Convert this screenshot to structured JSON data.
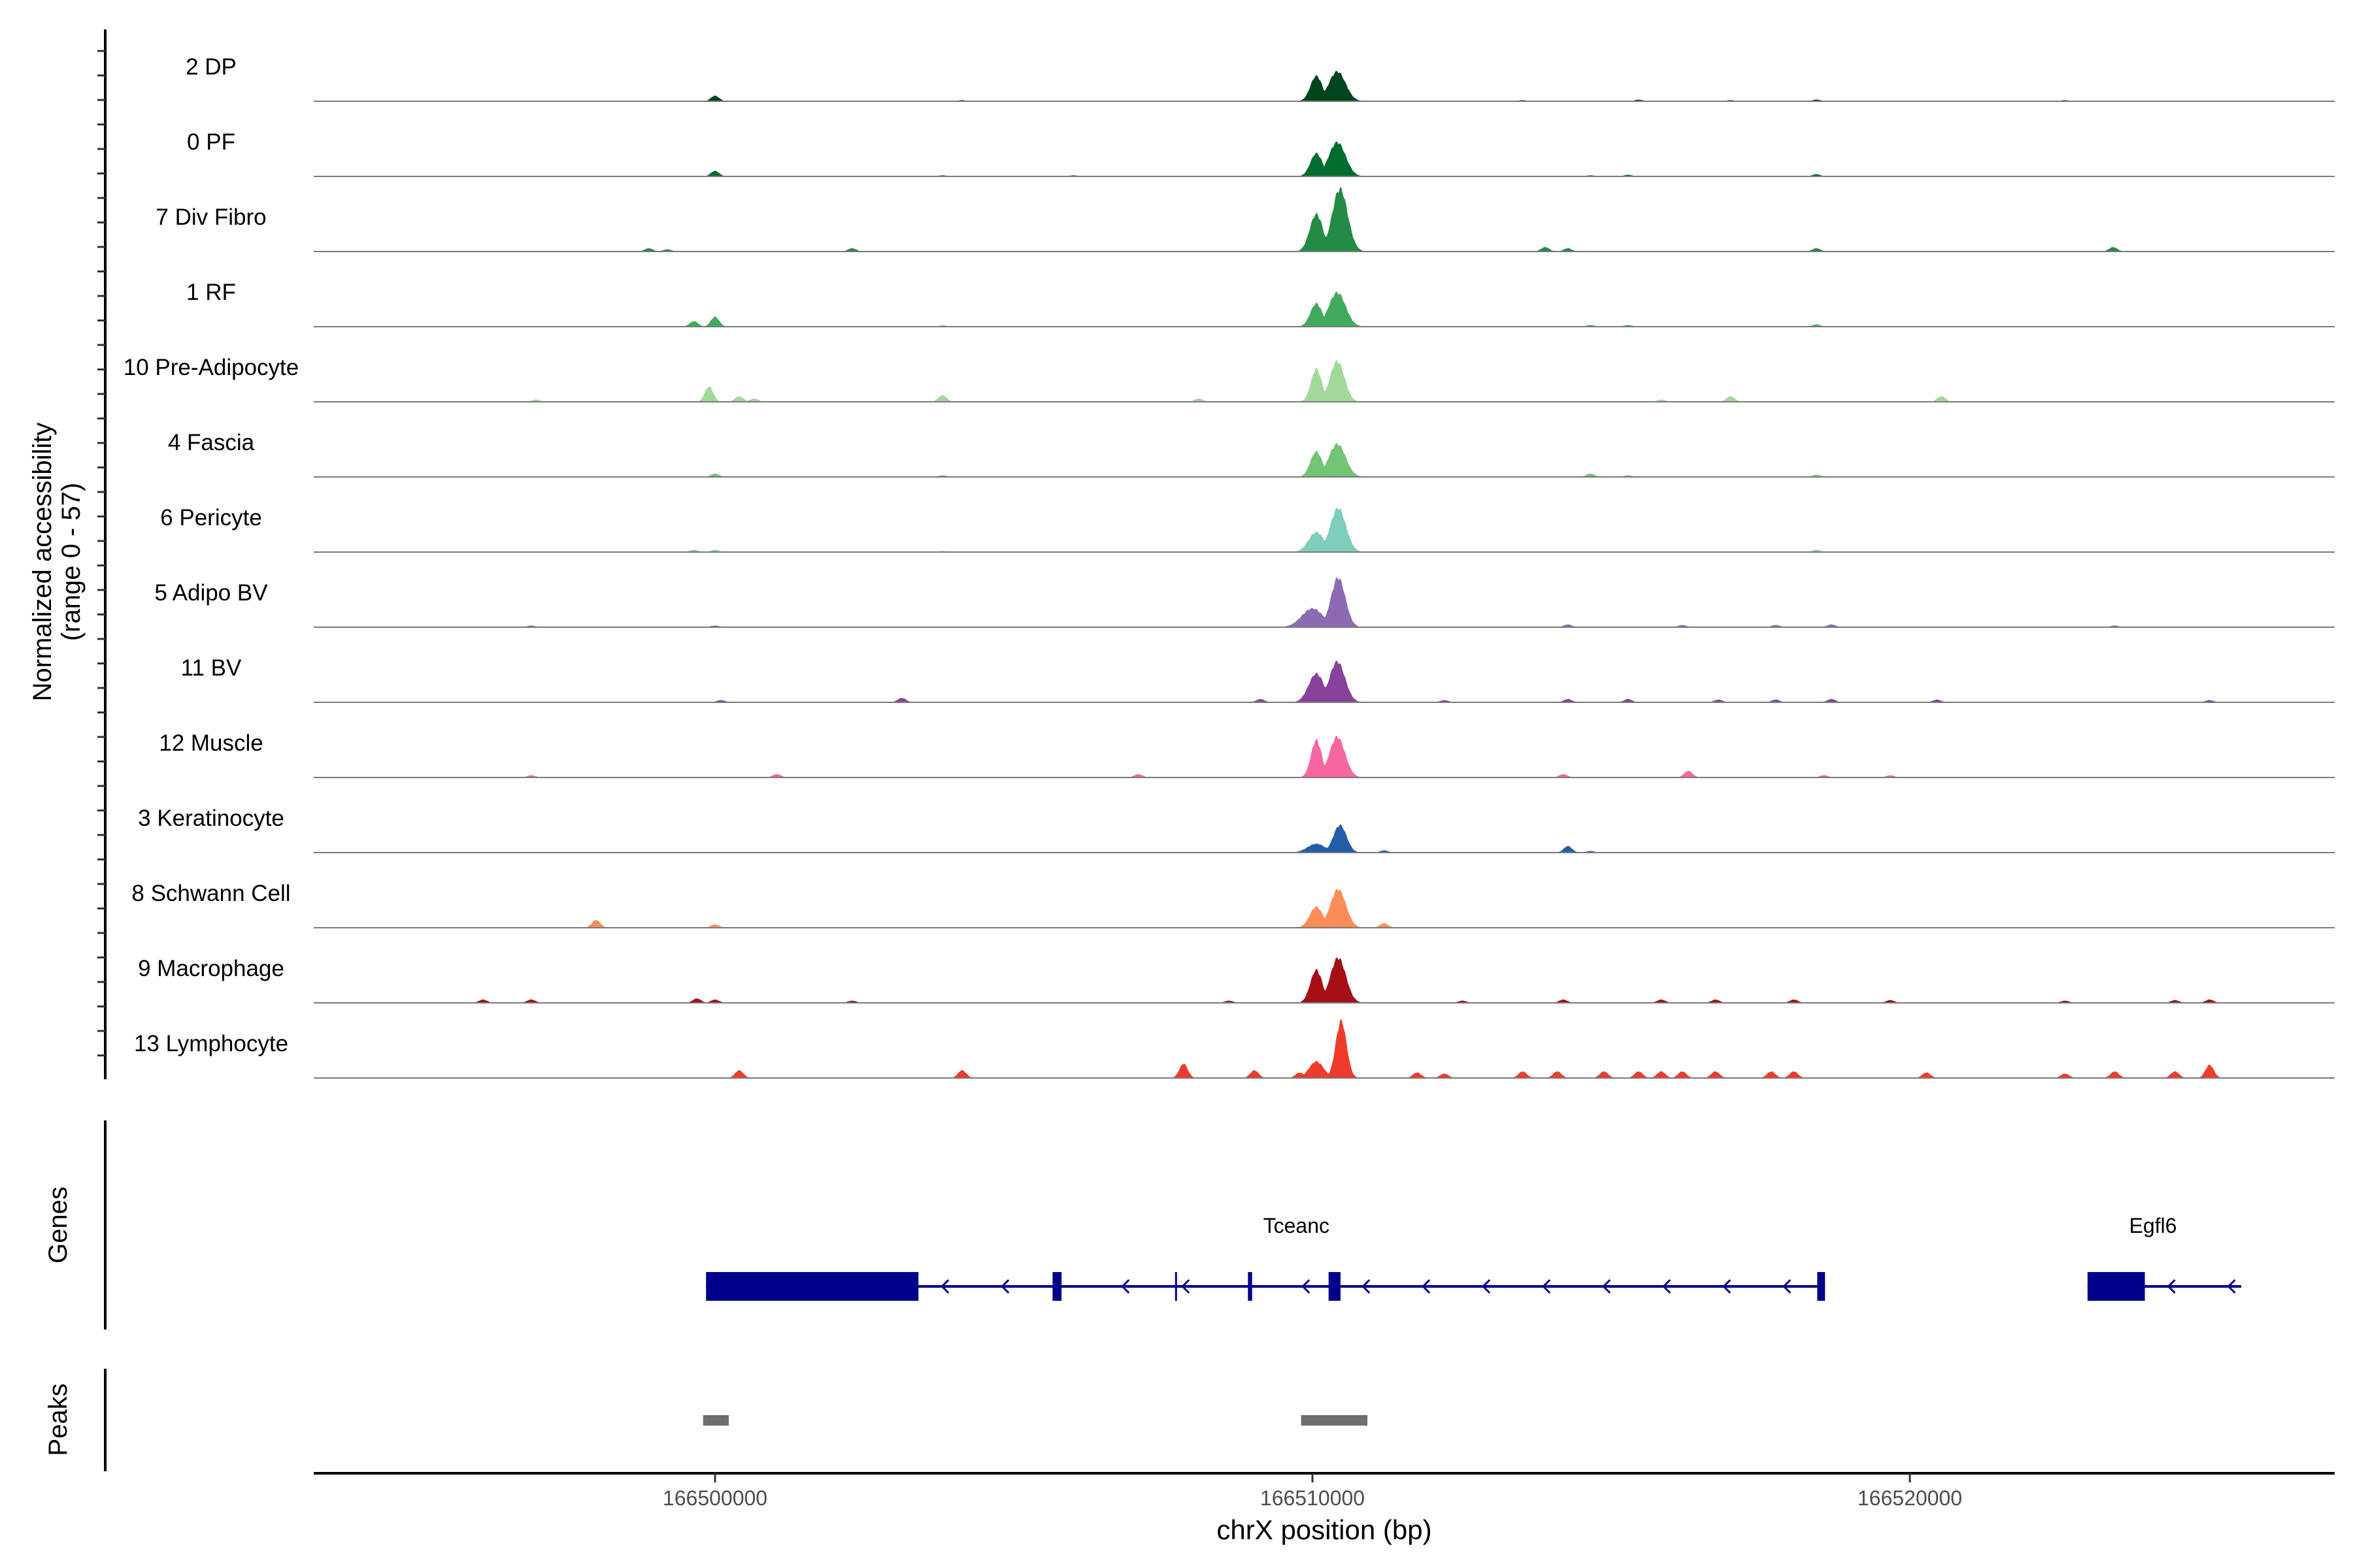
{
  "chart_data": {
    "type": "area",
    "ylabel_line1": "Normalized accessibility",
    "ylabel_line2": "(range 0 - 57)",
    "xlabel": "chrX position (bp)",
    "xlim": [
      166493282,
      166527112
    ],
    "ylim": [
      0,
      57
    ],
    "x_ticks": [
      {
        "value": 166500000,
        "label": "166500000"
      },
      {
        "value": 166510000,
        "label": "166510000"
      },
      {
        "value": 166520000,
        "label": "166520000"
      }
    ],
    "tracks": [
      {
        "name": "2 DP",
        "color": "#00441b",
        "lobes": [
          [
            166510066,
            23,
            100
          ],
          [
            166510415,
            27,
            140
          ]
        ],
        "minor": [
          [
            166500000,
            5
          ],
          [
            166504136,
            1
          ],
          [
            166513518,
            1
          ],
          [
            166515460,
            1.5
          ],
          [
            166516998,
            1
          ],
          [
            166518436,
            1.5
          ],
          [
            166522597,
            1
          ]
        ]
      },
      {
        "name": "0 PF",
        "color": "#006d2c",
        "lobes": [
          [
            166510066,
            21,
            100
          ],
          [
            166510415,
            31,
            140
          ]
        ],
        "minor": [
          [
            166500000,
            5
          ],
          [
            166503808,
            1
          ],
          [
            166506000,
            1
          ],
          [
            166514653,
            1
          ],
          [
            166515283,
            1.5
          ],
          [
            166518436,
            2
          ]
        ]
      },
      {
        "name": "7 Div Fibro",
        "color": "#238b45",
        "lobes": [
          [
            166510066,
            34,
            110
          ],
          [
            166510460,
            57,
            130
          ]
        ],
        "minor": [
          [
            166498890,
            3
          ],
          [
            166499200,
            2
          ],
          [
            166502295,
            3
          ],
          [
            166513896,
            4
          ],
          [
            166514275,
            3
          ],
          [
            166518436,
            3
          ],
          [
            166523404,
            4
          ]
        ]
      },
      {
        "name": "1 RF",
        "color": "#41ab5d",
        "lobes": [
          [
            166510066,
            21,
            100
          ],
          [
            166510415,
            31,
            140
          ]
        ],
        "minor": [
          [
            166499647,
            5
          ],
          [
            166500000,
            9
          ],
          [
            166503808,
            1
          ],
          [
            166514653,
            1.5
          ],
          [
            166515283,
            1.5
          ],
          [
            166518436,
            2
          ]
        ]
      },
      {
        "name": "10 Pre-Adipocyte",
        "color": "#a1d99b",
        "lobes": [
          [
            166510066,
            30,
            90
          ],
          [
            166510415,
            37,
            120
          ]
        ],
        "minor": [
          [
            166497000,
            2
          ],
          [
            166499899,
            14
          ],
          [
            166500404,
            5
          ],
          [
            166500656,
            3
          ],
          [
            166503808,
            6
          ],
          [
            166508096,
            3
          ],
          [
            166516998,
            5
          ],
          [
            166520529,
            5
          ],
          [
            166515838,
            2
          ]
        ]
      },
      {
        "name": "4 Fascia",
        "color": "#74c476",
        "lobes": [
          [
            166510066,
            23,
            100
          ],
          [
            166510415,
            30,
            140
          ]
        ],
        "minor": [
          [
            166500000,
            3
          ],
          [
            166503808,
            1.5
          ],
          [
            166514653,
            3
          ],
          [
            166515283,
            1.5
          ],
          [
            166518436,
            2
          ]
        ]
      },
      {
        "name": "6 Pericyte",
        "color": "#7fcdbb",
        "lobes": [
          [
            166510066,
            18,
            130
          ],
          [
            166510430,
            40,
            130
          ]
        ],
        "minor": [
          [
            166499647,
            2
          ],
          [
            166500000,
            2
          ],
          [
            166503808,
            1
          ],
          [
            166518436,
            2
          ]
        ]
      },
      {
        "name": "5 Adipo BV",
        "color": "#8c6bb1",
        "lobes": [
          [
            166510000,
            17,
            180
          ],
          [
            166510430,
            45,
            120
          ]
        ],
        "minor": [
          [
            166496923,
            1.5
          ],
          [
            166500000,
            1.5
          ],
          [
            166514275,
            2.5
          ],
          [
            166516191,
            2
          ],
          [
            166517755,
            2
          ],
          [
            166518688,
            2.5
          ],
          [
            166523429,
            1.5
          ]
        ]
      },
      {
        "name": "11 BV",
        "color": "#88419d",
        "lobes": [
          [
            166510066,
            26,
            130
          ],
          [
            166510415,
            37,
            130
          ]
        ],
        "minor": [
          [
            166500101,
            2
          ],
          [
            166503127,
            4
          ],
          [
            166509130,
            3
          ],
          [
            166512206,
            2
          ],
          [
            166514275,
            3
          ],
          [
            166515283,
            3
          ],
          [
            166516797,
            2.5
          ],
          [
            166517755,
            2.5
          ],
          [
            166518688,
            3
          ],
          [
            166520453,
            2.5
          ],
          [
            166525018,
            2
          ]
        ]
      },
      {
        "name": "12 Muscle",
        "color": "#f768a1",
        "lobes": [
          [
            166510066,
            34,
            90
          ],
          [
            166510415,
            37,
            130
          ]
        ],
        "minor": [
          [
            166496923,
            2
          ],
          [
            166501034,
            3
          ],
          [
            166507087,
            3
          ],
          [
            166514199,
            3
          ],
          [
            166516292,
            6
          ],
          [
            166518562,
            2
          ],
          [
            166519672,
            2
          ]
        ]
      },
      {
        "name": "3 Keratinocyte",
        "color": "#225ea8",
        "lobes": [
          [
            166510066,
            8,
            150
          ],
          [
            166510460,
            25,
            110
          ]
        ],
        "minor": [
          [
            166511197,
            2
          ],
          [
            166514275,
            6
          ],
          [
            166514653,
            1.5
          ]
        ]
      },
      {
        "name": "8 Schwann Cell",
        "color": "#fc8d59",
        "lobes": [
          [
            166510066,
            19,
            110
          ],
          [
            166510430,
            35,
            130
          ]
        ],
        "minor": [
          [
            166498008,
            7
          ],
          [
            166500000,
            3
          ],
          [
            166511197,
            4
          ]
        ]
      },
      {
        "name": "9 Macrophage",
        "color": "#a50f15",
        "lobes": [
          [
            166510066,
            30,
            100
          ],
          [
            166510430,
            41,
            130
          ]
        ],
        "minor": [
          [
            166496116,
            3
          ],
          [
            166496923,
            3
          ],
          [
            166499697,
            4
          ],
          [
            166500000,
            3
          ],
          [
            166502295,
            2
          ],
          [
            166508600,
            2
          ],
          [
            166512509,
            2
          ],
          [
            166514199,
            3
          ],
          [
            166515838,
            3
          ],
          [
            166516746,
            3
          ],
          [
            166518058,
            3
          ],
          [
            166519672,
            2.5
          ],
          [
            166522597,
            2
          ],
          [
            166524438,
            2.5
          ],
          [
            166525018,
            3
          ]
        ]
      },
      {
        "name": "13 Lymphocyte",
        "color": "#ef3b2c",
        "lobes": [
          [
            166510066,
            15,
            120
          ],
          [
            166510480,
            52,
            90
          ]
        ],
        "minor": [
          [
            166500404,
            7
          ],
          [
            166504136,
            7
          ],
          [
            166507843,
            13
          ],
          [
            166509029,
            7
          ],
          [
            166509785,
            5
          ],
          [
            166511752,
            5
          ],
          [
            166512206,
            4
          ],
          [
            166513518,
            6
          ],
          [
            166514098,
            6
          ],
          [
            166514880,
            6
          ],
          [
            166515460,
            6
          ],
          [
            166515838,
            6
          ],
          [
            166516191,
            6
          ],
          [
            166516746,
            6
          ],
          [
            166517679,
            6
          ],
          [
            166518058,
            6
          ],
          [
            166520277,
            5
          ],
          [
            166522597,
            4
          ],
          [
            166523429,
            6
          ],
          [
            166524438,
            6
          ],
          [
            166525018,
            12
          ]
        ]
      }
    ],
    "genes_label": "Genes",
    "genes": [
      {
        "name": "Tceanc",
        "label_pos": 166509730,
        "start": 166499849,
        "end": 166518580,
        "exons": [
          [
            166499849,
            166503405
          ],
          [
            166505650,
            166505800
          ],
          [
            166507700,
            166507730
          ],
          [
            166508920,
            166508990
          ],
          [
            166510270,
            166510470
          ],
          [
            166518450,
            166518580
          ]
        ]
      },
      {
        "name": "Egfl6",
        "label_pos": 166524070,
        "start": 166522975,
        "end": 166525548,
        "exons": [
          [
            166522975,
            166523934
          ]
        ]
      }
    ],
    "gene_color": "#00008b",
    "peaks_label": "Peaks",
    "peaks": [
      [
        166499800,
        166500230
      ],
      [
        166509810,
        166510920
      ]
    ],
    "peak_color": "#6e6e6e"
  }
}
